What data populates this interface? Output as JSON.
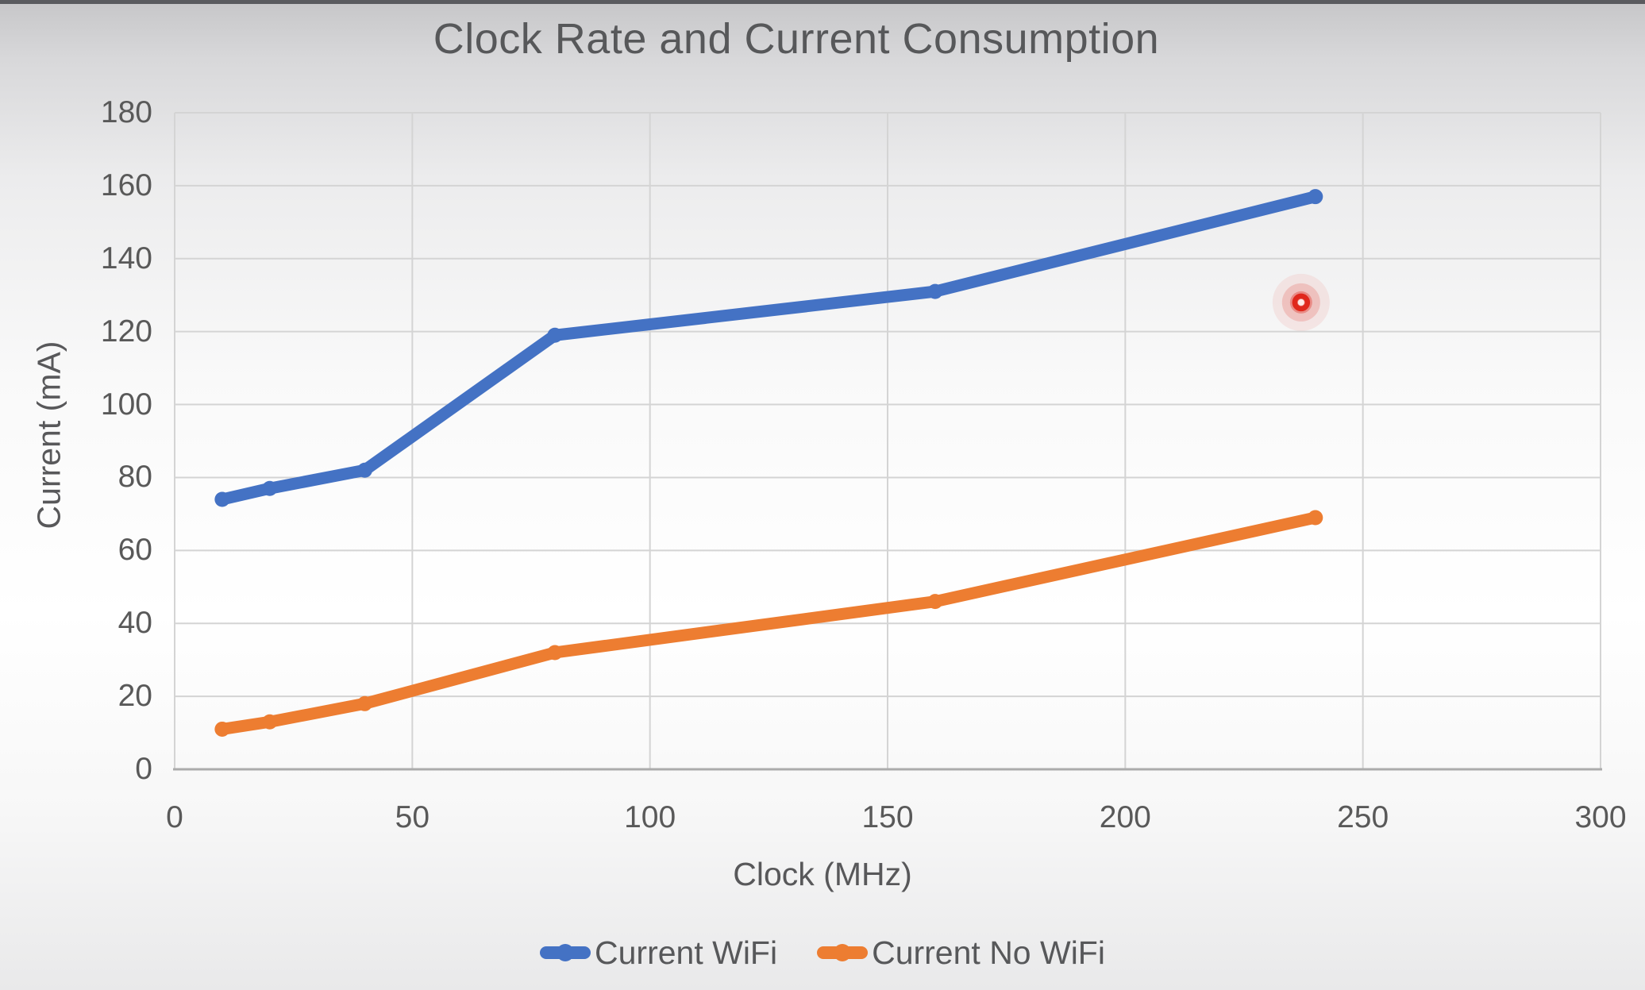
{
  "window": {
    "top_edge_color": "#5a5b5f"
  },
  "chart": {
    "title": "Clock Rate and Current Consumption",
    "x_axis_title": "Clock (MHz)",
    "y_axis_title": "Current (mA)",
    "text_color": "#595959",
    "gridline_color": "#d4d4d4",
    "axis_line_color": "#ababab",
    "legend": [
      {
        "label": "Current WiFi",
        "color": "#4472c4"
      },
      {
        "label": "Current No WiFi",
        "color": "#ed7d31"
      }
    ]
  },
  "chart_data": {
    "type": "line",
    "title": "Clock Rate and Current Consumption",
    "xlabel": "Clock (MHz)",
    "ylabel": "Current (mA)",
    "x": [
      10,
      20,
      40,
      80,
      160,
      240
    ],
    "series": [
      {
        "name": "Current WiFi",
        "color": "#4472c4",
        "values": [
          74,
          77,
          82,
          119,
          131,
          157
        ]
      },
      {
        "name": "Current No WiFi",
        "color": "#ed7d31",
        "values": [
          11,
          13,
          18,
          32,
          46,
          69
        ]
      }
    ],
    "xlim": [
      0,
      300
    ],
    "ylim": [
      0,
      180
    ],
    "x_ticks": [
      0,
      50,
      100,
      150,
      200,
      250,
      300
    ],
    "y_ticks": [
      0,
      20,
      40,
      60,
      80,
      100,
      120,
      140,
      160,
      180
    ],
    "grid": true,
    "legend_position": "bottom",
    "line_width": 15,
    "annotations": [
      {
        "type": "laser-pointer-dot",
        "x": 237,
        "y": 128,
        "color": "#e0281c"
      }
    ]
  }
}
